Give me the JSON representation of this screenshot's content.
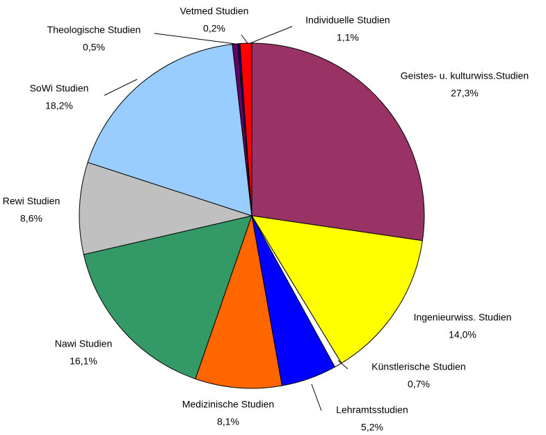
{
  "chart_data": {
    "type": "pie",
    "categories": [
      "Geistes- u. kulturwiss.Studien",
      "Ingenieurwiss. Studien",
      "Künstlerische Studien",
      "Lehramtsstudien",
      "Medizinische Studien",
      "Nawi Studien",
      "Rewi Studien",
      "SoWi Studien",
      "Theologische Studien",
      "Vetmed Studien",
      "Individuelle Studien"
    ],
    "values": [
      27.3,
      14.0,
      0.7,
      5.2,
      8.1,
      16.1,
      8.6,
      18.2,
      0.5,
      0.2,
      1.1
    ],
    "value_labels": [
      "27,3%",
      "14,0%",
      "0,7%",
      "5,2%",
      "8,1%",
      "16,1%",
      "8,6%",
      "18,2%",
      "0,5%",
      "0,2%",
      "1,1%"
    ],
    "colors": [
      "#993366",
      "#ffff00",
      "#ffffff",
      "#0000ff",
      "#ff6600",
      "#339966",
      "#c0c0c0",
      "#99ccff",
      "#660066",
      "#000080",
      "#ff0000"
    ]
  }
}
